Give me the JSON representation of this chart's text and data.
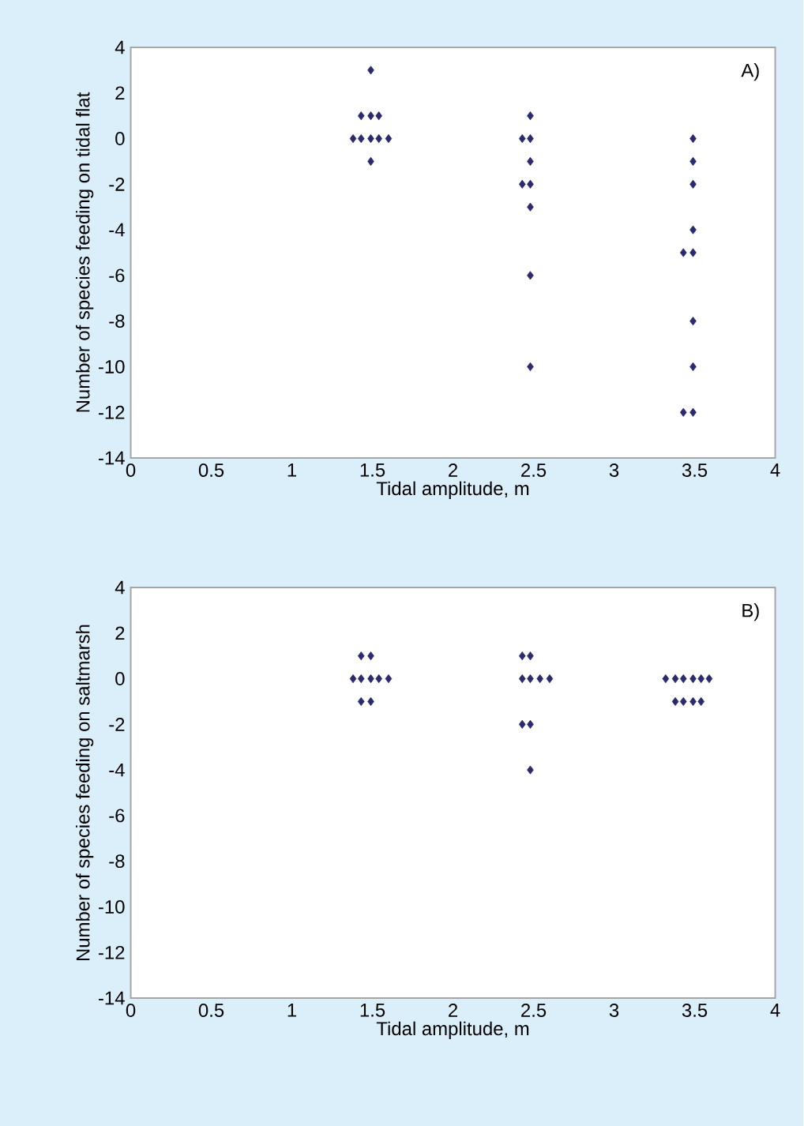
{
  "chart_data": [
    {
      "type": "scatter",
      "xlabel": "Tidal amplitude, m",
      "ylabel": "Number of species feeding on tidal flat",
      "annotations": [
        "A)"
      ],
      "marker": "diamond",
      "color": "#2b2a6e",
      "x": [
        1.49,
        1.43,
        1.49,
        1.54,
        1.38,
        1.43,
        1.49,
        1.54,
        1.6,
        1.49,
        2.48,
        2.43,
        2.48,
        2.48,
        2.43,
        2.48,
        2.48,
        2.48,
        2.48,
        3.49,
        3.49,
        3.49,
        3.49,
        3.43,
        3.49,
        3.49,
        3.49,
        3.43,
        3.49
      ],
      "values": [
        3,
        1,
        1,
        1,
        0,
        0,
        0,
        0,
        0,
        -1,
        1,
        0,
        0,
        -1,
        -2,
        -2,
        -3,
        -6,
        -10,
        0,
        -1,
        -2,
        -4,
        -5,
        -5,
        -8,
        -10,
        -12,
        -12
      ],
      "xlim": [
        0,
        4
      ],
      "ylim": [
        -14,
        4
      ],
      "xticks": [
        0,
        0.5,
        1,
        1.5,
        2,
        2.5,
        3,
        3.5,
        4
      ],
      "yticks": [
        -14,
        -12,
        -10,
        -8,
        -6,
        -4,
        -2,
        0,
        2,
        4
      ]
    },
    {
      "type": "scatter",
      "xlabel": "Tidal amplitude, m",
      "ylabel": "Number of species feeding on saltmarsh",
      "annotations": [
        "B)"
      ],
      "marker": "diamond",
      "color": "#2b2a6e",
      "x": [
        1.43,
        1.49,
        1.38,
        1.43,
        1.49,
        1.54,
        1.6,
        1.43,
        1.49,
        2.43,
        2.48,
        2.43,
        2.48,
        2.54,
        2.6,
        2.43,
        2.48,
        2.48,
        3.32,
        3.38,
        3.43,
        3.49,
        3.54,
        3.59,
        3.38,
        3.43,
        3.49,
        3.54
      ],
      "values": [
        1,
        1,
        0,
        0,
        0,
        0,
        0,
        -1,
        -1,
        1,
        1,
        0,
        0,
        0,
        0,
        -2,
        -2,
        -4,
        0,
        0,
        0,
        0,
        0,
        0,
        -1,
        -1,
        -1,
        -1
      ],
      "xlim": [
        0,
        4
      ],
      "ylim": [
        -14,
        4
      ],
      "xticks": [
        0,
        0.5,
        1,
        1.5,
        2,
        2.5,
        3,
        3.5,
        4
      ],
      "yticks": [
        -14,
        -12,
        -10,
        -8,
        -6,
        -4,
        -2,
        0,
        2,
        4
      ]
    }
  ]
}
